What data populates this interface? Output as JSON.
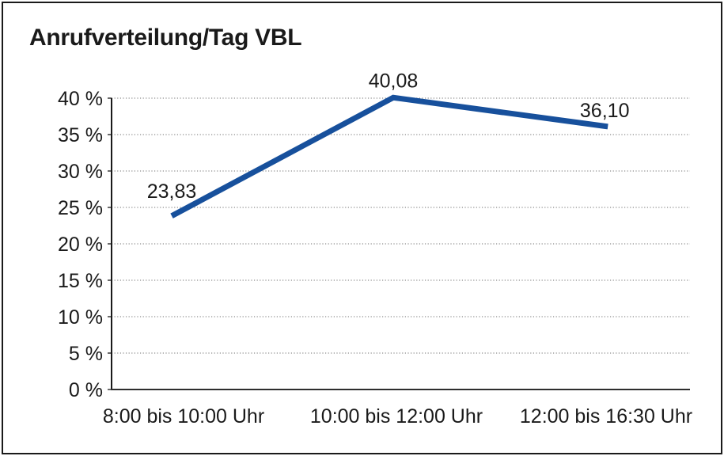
{
  "title": "Anrufverteilung/Tag VBL",
  "chart_data": {
    "type": "line",
    "title": "Anrufverteilung/Tag VBL",
    "categories": [
      "8:00 bis 10:00 Uhr",
      "10:00 bis 12:00 Uhr",
      "12:00 bis 16:30 Uhr"
    ],
    "values": [
      23.83,
      40.08,
      36.1
    ],
    "value_labels": [
      "23,83",
      "40,08",
      "36,10"
    ],
    "xlabel": "",
    "ylabel": "",
    "ylim": [
      0,
      40
    ],
    "ytick_step": 5,
    "ytick_labels": [
      "0 %",
      "5 %",
      "10 %",
      "15 %",
      "20 %",
      "25 %",
      "30 %",
      "35 %",
      "40 %"
    ],
    "grid": "horizontal-dotted",
    "legend_position": "none",
    "line_color": "#17509C",
    "grid_color": "#8c8c8c",
    "axis_color": "#1a1a1a",
    "text_color": "#1a1a1a",
    "background_color": "#ffffff"
  }
}
